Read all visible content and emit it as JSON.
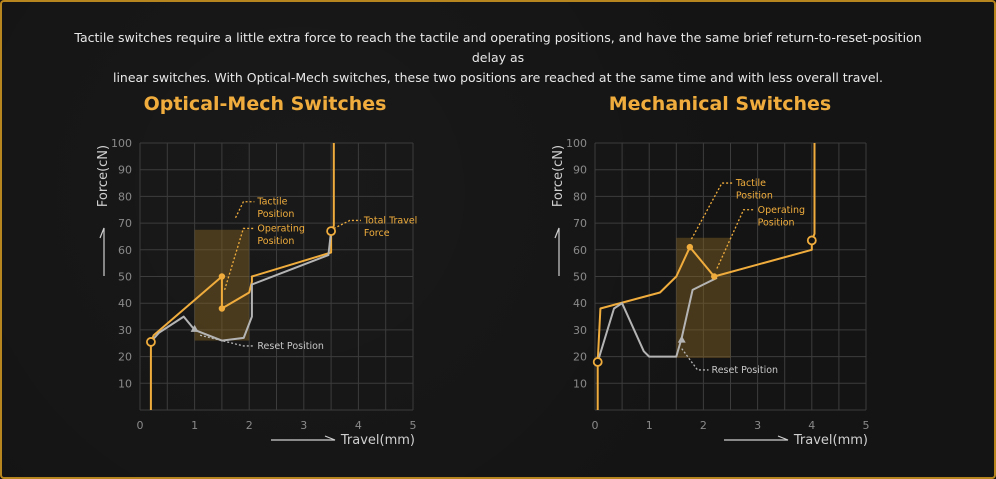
{
  "intro": {
    "line1": "Tactile switches require a little extra force to reach the tactile and operating positions, and have the same brief return-to-reset-position delay as",
    "line2": "linear switches. With Optical-Mech switches, these two positions are reached at the same time and with less overall travel."
  },
  "colors": {
    "accent": "#f0ad3d",
    "gray": "#b4b4b4",
    "grid": "#3c3c3c",
    "box": "rgba(135,100,35,0.45)"
  },
  "chart_data": [
    {
      "type": "line",
      "title": "Optical-Mech Switches",
      "xlabel": "Travel(mm)",
      "ylabel": "Force(cN)",
      "xlim": [
        0,
        5
      ],
      "ylim": [
        0,
        100
      ],
      "xticks": [
        "0",
        "1",
        "2",
        "3",
        "4",
        "5"
      ],
      "yticks": [
        "10",
        "20",
        "30",
        "40",
        "50",
        "60",
        "70",
        "80",
        "90",
        "100"
      ],
      "grid": true,
      "series": [
        {
          "role": "press",
          "color": "#f0ad3d",
          "points": [
            [
              0.2,
              0
            ],
            [
              0.2,
              25.5
            ],
            [
              0.25,
              28
            ],
            [
              1.5,
              50
            ],
            [
              1.5,
              38
            ],
            [
              2.0,
              44
            ],
            [
              2.05,
              48
            ],
            [
              2.05,
              50
            ],
            [
              3.5,
              59
            ],
            [
              3.5,
              67
            ],
            [
              3.55,
              69
            ],
            [
              3.55,
              100
            ]
          ]
        },
        {
          "role": "release",
          "color": "#b4b4b4",
          "points": [
            [
              0.2,
              25.5
            ],
            [
              0.35,
              29
            ],
            [
              0.8,
              35
            ],
            [
              1.0,
              30
            ],
            [
              1.5,
              26
            ],
            [
              1.9,
              27
            ],
            [
              2.05,
              35
            ],
            [
              2.05,
              47
            ],
            [
              3.45,
              58
            ],
            [
              3.5,
              67
            ]
          ]
        }
      ],
      "region": {
        "x": [
          1.0,
          2.0
        ],
        "y": [
          26,
          67.5
        ]
      },
      "markers": [
        {
          "x": 0.2,
          "y": 25.5,
          "style": "hollow"
        },
        {
          "x": 1.5,
          "y": 50,
          "style": "filled"
        },
        {
          "x": 1.5,
          "y": 38,
          "style": "filled"
        },
        {
          "x": 1.0,
          "y": 30,
          "style": "arrow"
        },
        {
          "x": 3.5,
          "y": 67,
          "style": "hollow"
        }
      ],
      "annotations": [
        {
          "text": "Tactile Position",
          "lines": [
            "Tactile",
            "Position"
          ],
          "x": 1.75,
          "y": 72,
          "tx": 2.15,
          "ty": 78
        },
        {
          "text": "Operating Position",
          "lines": [
            "Operating",
            "Position"
          ],
          "x": 1.55,
          "y": 45,
          "tx": 2.15,
          "ty": 68
        },
        {
          "text": "Total Travel Force",
          "lines": [
            "Total Travel",
            "Force"
          ],
          "x": 3.55,
          "y": 68,
          "tx": 4.1,
          "ty": 71
        },
        {
          "text": "Reset Position",
          "lines": [
            "Reset Position"
          ],
          "x": 1.1,
          "y": 28,
          "tx": 2.15,
          "ty": 24
        }
      ]
    },
    {
      "type": "line",
      "title": "Mechanical Switches",
      "xlabel": "Travel(mm)",
      "ylabel": "Force(cN)",
      "xlim": [
        0,
        5
      ],
      "ylim": [
        0,
        100
      ],
      "xticks": [
        "0",
        "1",
        "2",
        "3",
        "4",
        "5"
      ],
      "yticks": [
        "10",
        "20",
        "30",
        "40",
        "50",
        "60",
        "70",
        "80",
        "90",
        "100"
      ],
      "grid": true,
      "series": [
        {
          "role": "press",
          "color": "#f0ad3d",
          "points": [
            [
              0.05,
              0
            ],
            [
              0.05,
              18
            ],
            [
              0.1,
              38
            ],
            [
              1.2,
              44
            ],
            [
              1.5,
              50
            ],
            [
              1.75,
              61
            ],
            [
              2.2,
              50
            ],
            [
              4.0,
              60
            ],
            [
              4.0,
              63.5
            ],
            [
              4.05,
              66
            ],
            [
              4.05,
              100
            ]
          ]
        },
        {
          "role": "release",
          "color": "#b4b4b4",
          "points": [
            [
              0.05,
              18
            ],
            [
              0.35,
              38
            ],
            [
              0.5,
              40
            ],
            [
              0.9,
              22
            ],
            [
              1.0,
              20
            ],
            [
              1.5,
              20
            ],
            [
              1.6,
              27
            ],
            [
              1.8,
              45
            ],
            [
              2.0,
              47
            ],
            [
              2.25,
              49.5
            ]
          ]
        }
      ],
      "region": {
        "x": [
          1.5,
          2.5
        ],
        "y": [
          19.5,
          64.5
        ]
      },
      "markers": [
        {
          "x": 0.05,
          "y": 18,
          "style": "hollow"
        },
        {
          "x": 1.75,
          "y": 61,
          "style": "filled"
        },
        {
          "x": 2.2,
          "y": 50,
          "style": "filled"
        },
        {
          "x": 1.6,
          "y": 26,
          "style": "arrow"
        },
        {
          "x": 4.0,
          "y": 63.5,
          "style": "hollow"
        }
      ],
      "annotations": [
        {
          "text": "Tactile Position",
          "lines": [
            "Tactile",
            "Position"
          ],
          "x": 1.78,
          "y": 64,
          "tx": 2.6,
          "ty": 85
        },
        {
          "text": "Operating Position",
          "lines": [
            "Operating",
            "Position"
          ],
          "x": 2.25,
          "y": 53,
          "tx": 3.0,
          "ty": 75
        },
        {
          "text": "Reset Position",
          "lines": [
            "Reset Position"
          ],
          "x": 1.6,
          "y": 23,
          "tx": 2.15,
          "ty": 15
        }
      ]
    }
  ]
}
